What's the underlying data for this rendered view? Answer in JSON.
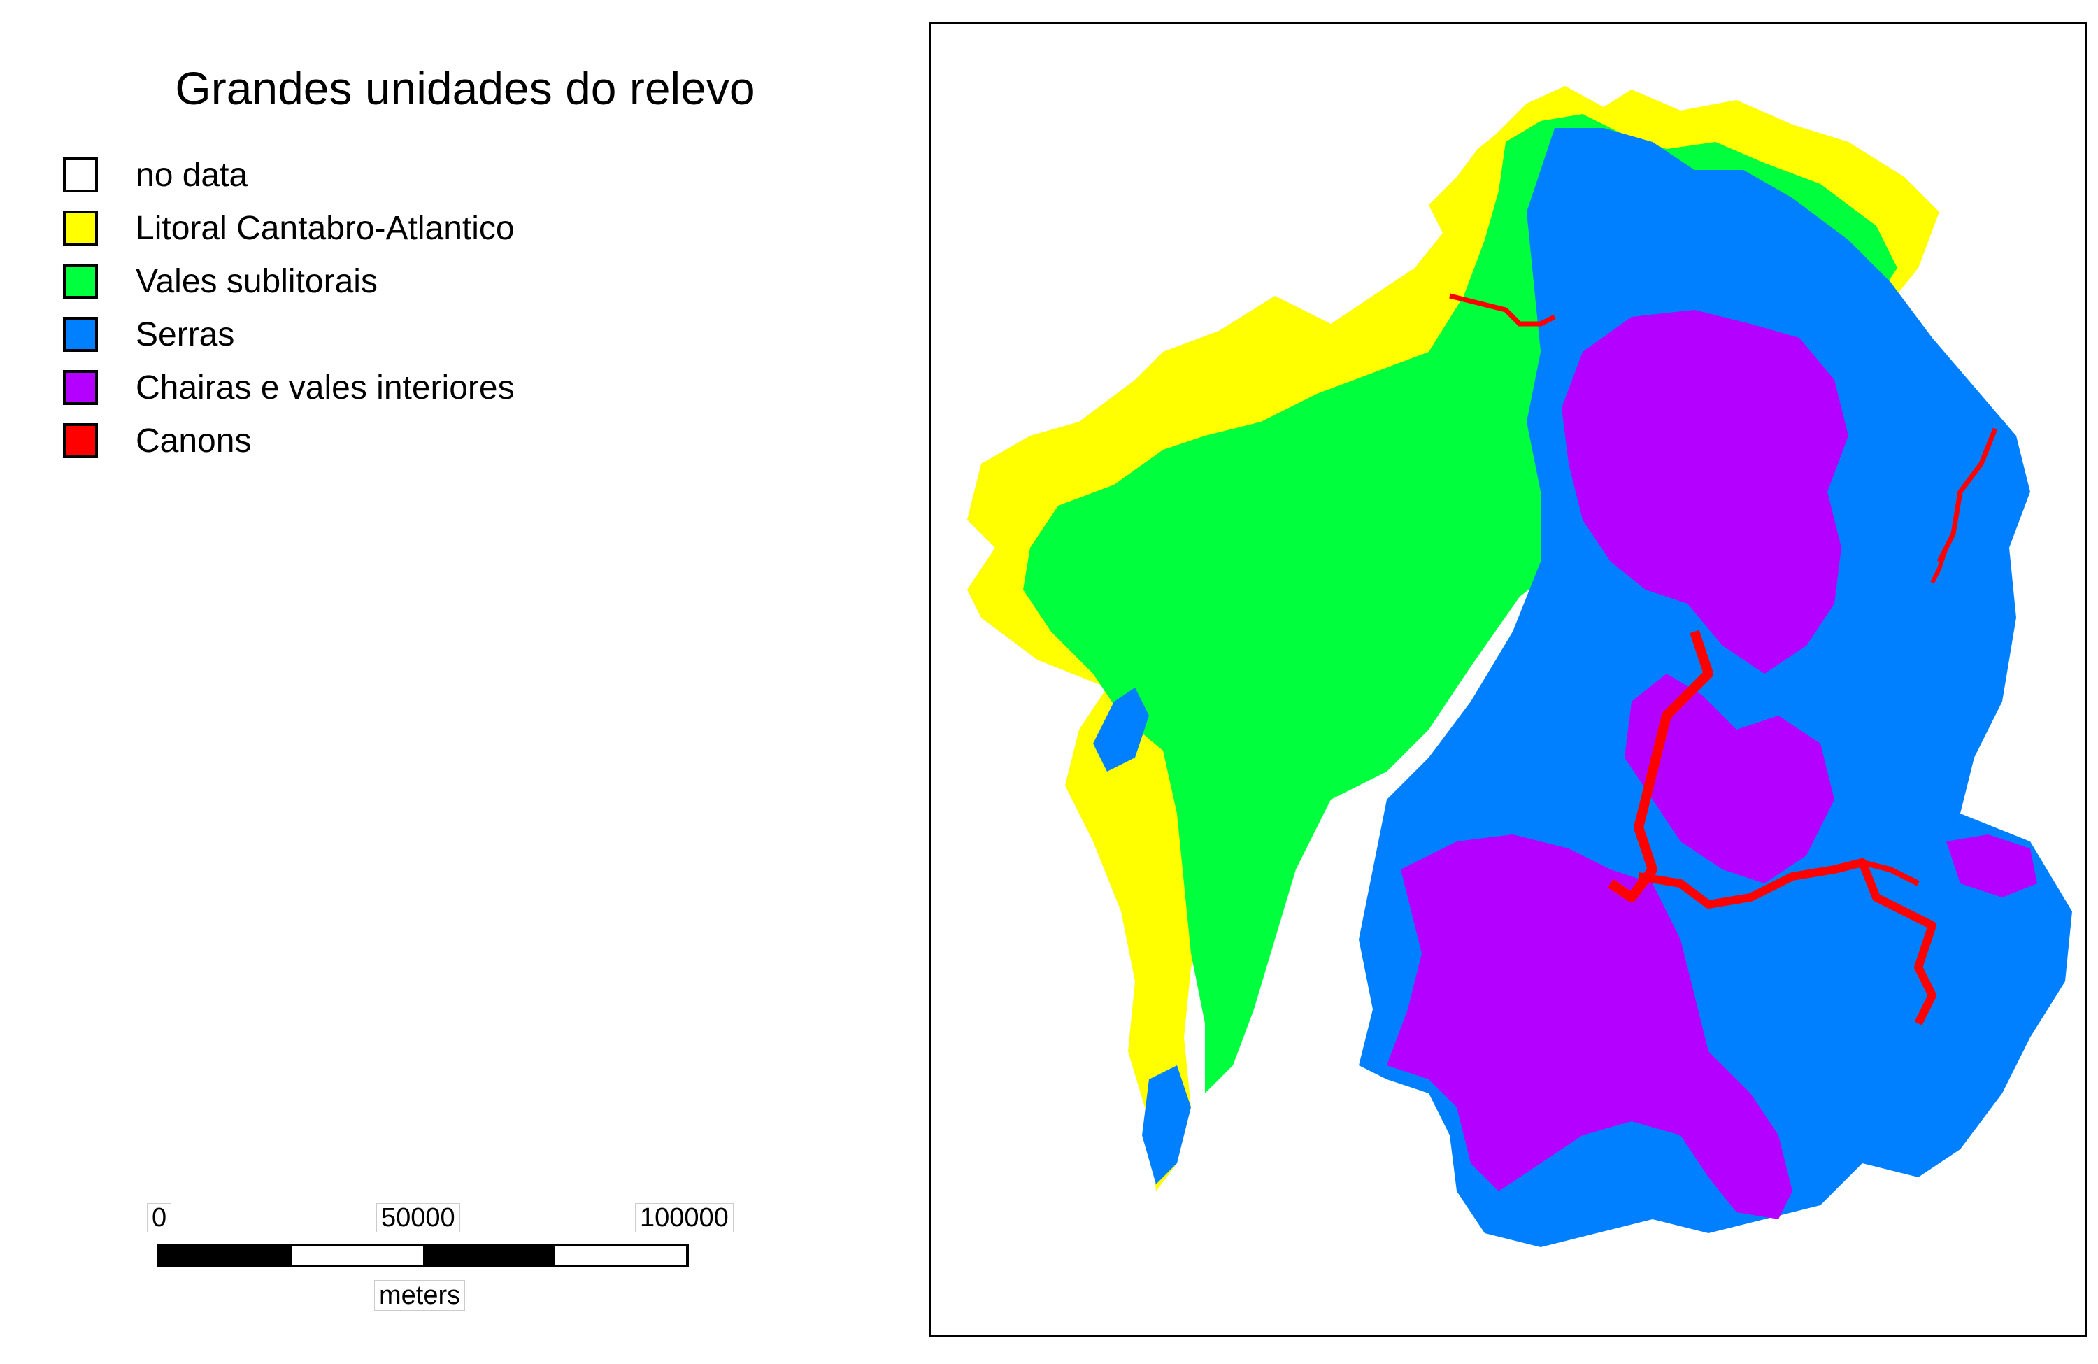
{
  "map": {
    "title": "Grandes unidades do relevo",
    "legend": [
      {
        "label": "no data",
        "color": "#ffffff"
      },
      {
        "label": "Litoral Cantabro-Atlantico",
        "color": "#ffff00"
      },
      {
        "label": "Vales sublitorais",
        "color": "#00ff3c"
      },
      {
        "label": "Serras",
        "color": "#0080ff"
      },
      {
        "label": "Chairas e vales interiores",
        "color": "#b300ff"
      },
      {
        "label": "Canons",
        "color": "#ff0000"
      }
    ],
    "scale": {
      "ticks": [
        "0",
        "50000",
        "100000"
      ],
      "unit": "meters"
    }
  }
}
